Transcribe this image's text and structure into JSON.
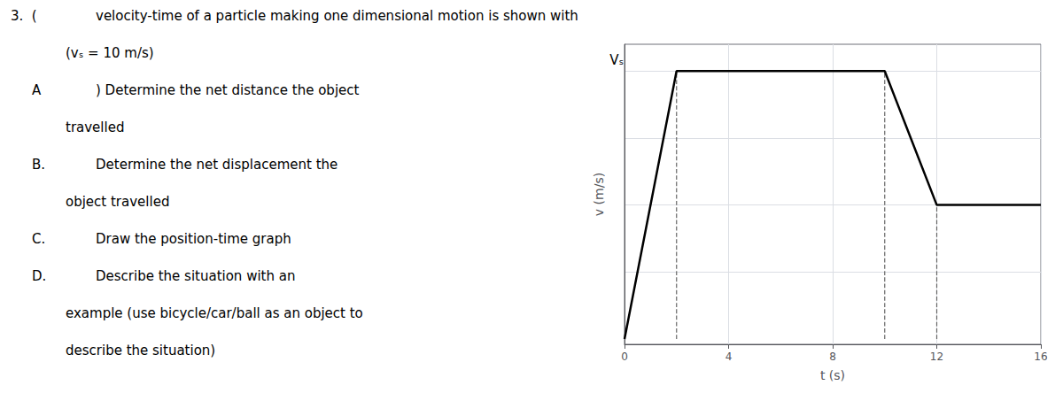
{
  "chart_data": {
    "type": "line",
    "x": [
      0,
      2,
      2,
      10,
      12,
      16
    ],
    "values": [
      0,
      10,
      10,
      10,
      5,
      5
    ],
    "color": "#000000",
    "xlabel": "t (s)",
    "ylabel": "v (m/s)",
    "xlim": [
      0,
      16
    ],
    "xticks": [
      0,
      4,
      8,
      12,
      16
    ],
    "ylim": [
      -0.2,
      11.0
    ],
    "yticks": [
      2.5,
      5.0,
      7.5,
      10.0
    ],
    "tick_labels": "x",
    "grid": true,
    "reference_lines": {
      "line_style": "dashed",
      "color": "#666666",
      "lines": [
        {
          "x": 2,
          "y0": 0,
          "y1": 10
        },
        {
          "x": 10,
          "y0": 0,
          "y1": 10
        },
        {
          "x": 12,
          "y0": 0,
          "y1": 5
        }
      ]
    },
    "point_annotations": [
      {
        "text": "Vₛ",
        "x": -0.3,
        "y": 10.15
      }
    ],
    "annotations": [
      [
        "3.  (",
        "velocity-time of a particle making one dimensional motion is shown with"
      ],
      [
        "(vₛ = 10 m/s)"
      ],
      [
        "A",
        ") Determine the net distance the object"
      ],
      [
        "travelled"
      ],
      [
        "B.",
        "Determine the net displacement the"
      ],
      [
        "object travelled"
      ],
      [
        "C.",
        "Draw the position-time graph"
      ],
      [
        "D.",
        "Describe the situation with an"
      ],
      [
        "example (use bicycle/car/ball as an object to"
      ],
      [
        "describe the situation)"
      ]
    ]
  }
}
